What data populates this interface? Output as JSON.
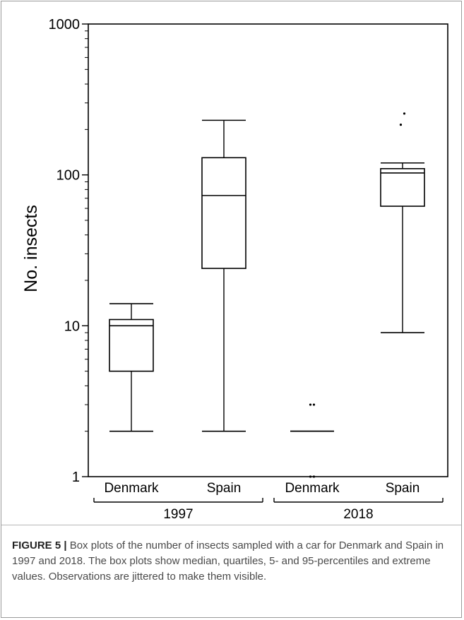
{
  "chart_data": {
    "type": "box",
    "title": "",
    "xlabel": "",
    "ylabel": "No. insects",
    "yscale": "log",
    "ylim": [
      1,
      1000
    ],
    "ytick_labels": [
      "1",
      "10",
      "100",
      "1000"
    ],
    "yticks": [
      1,
      10,
      100,
      1000
    ],
    "groups": [
      {
        "label": "1997",
        "categories": [
          "Denmark",
          "Spain"
        ]
      },
      {
        "label": "2018",
        "categories": [
          "Denmark",
          "Spain"
        ]
      }
    ],
    "boxes": [
      {
        "group": "1997",
        "category": "Denmark",
        "p5": 2,
        "q1": 5,
        "median": 10,
        "q3": 11,
        "p95": 14,
        "outliers": []
      },
      {
        "group": "1997",
        "category": "Spain",
        "p5": 2,
        "q1": 24,
        "median": 73,
        "q3": 130,
        "p95": 230,
        "outliers": []
      },
      {
        "group": "2018",
        "category": "Denmark",
        "p5": 2,
        "q1": 2,
        "median": 2,
        "q3": 2,
        "p95": 2,
        "outliers": [
          1,
          1,
          3,
          3
        ]
      },
      {
        "group": "2018",
        "category": "Spain",
        "p5": 9,
        "q1": 62,
        "median": 103,
        "q3": 110,
        "p95": 120,
        "outliers": [
          215,
          255
        ]
      }
    ],
    "grid": false,
    "legend": "none",
    "colors": {
      "stroke": "#000000",
      "background": "#ffffff"
    }
  },
  "caption": {
    "label": "FIGURE 5 |",
    "text": " Box plots of the number of insects sampled with a car for Denmark and Spain in 1997 and 2018. The box plots show median, quartiles, 5- and 95-percentiles and extreme values. Observations are jittered to make them visible."
  }
}
